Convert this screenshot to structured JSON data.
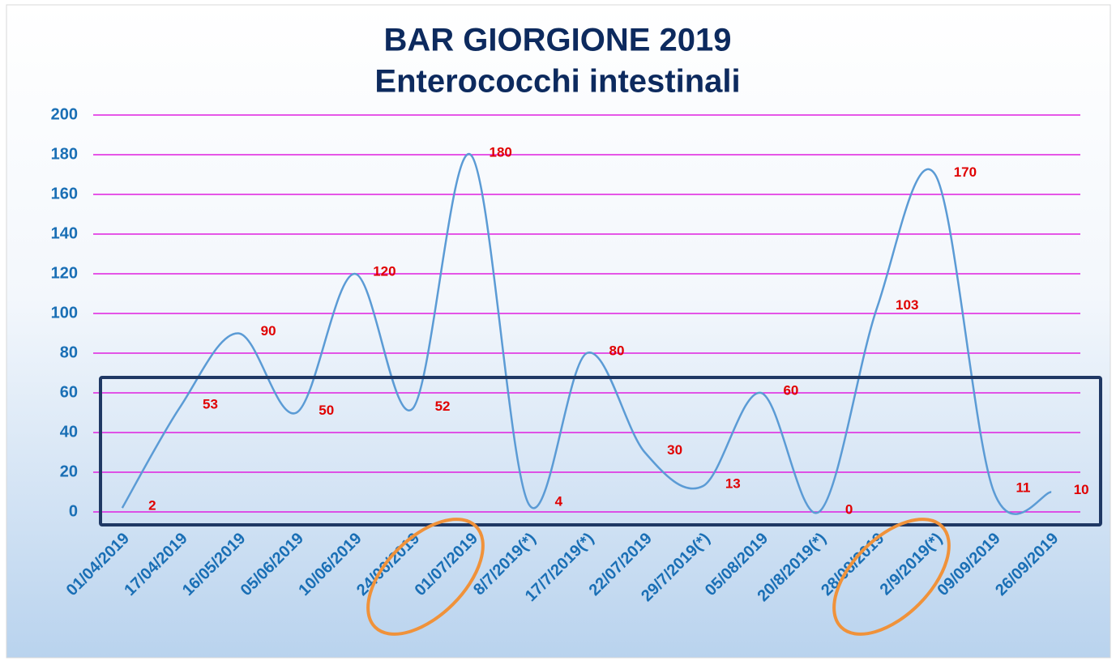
{
  "chart_data": {
    "type": "line",
    "title": "BAR GIORGIONE 2019",
    "subtitle": "Enterococchi intestinali",
    "categories": [
      "01/04/2019",
      "17/04/2019",
      "16/05/2019",
      "05/06/2019",
      "10/06/2019",
      "24/06/2019",
      "01/07/2019",
      "8/7/2019(*)",
      "17/7/2019(*)",
      "22/07/2019",
      "29/7/2019(*)",
      "05/08/2019",
      "20/8/2019(*)",
      "28/08/2019",
      "2/9/2019(*)",
      "09/09/2019",
      "26/09/2019"
    ],
    "series": [
      {
        "name": "Enterococchi intestinali",
        "color": "#5b9bd5",
        "values": [
          2,
          53,
          90,
          50,
          120,
          52,
          180,
          4,
          80,
          30,
          13,
          60,
          0,
          103,
          170,
          11,
          10
        ]
      }
    ],
    "label_color": "#e00000",
    "ylim": [
      0,
      200
    ],
    "yticks": [
      0,
      20,
      40,
      60,
      80,
      100,
      120,
      140,
      160,
      180,
      200
    ],
    "grid": true,
    "grid_color": "#e020e0"
  }
}
